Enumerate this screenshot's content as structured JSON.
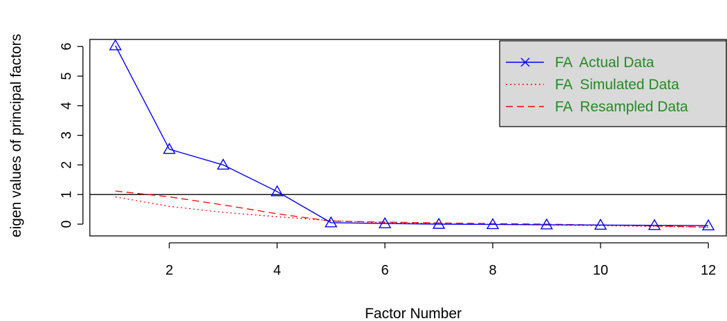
{
  "chart_data": {
    "type": "line",
    "xlabel": "Factor Number",
    "ylabel": "eigen values of principal factors",
    "x": [
      1,
      2,
      3,
      4,
      5,
      6,
      7,
      8,
      9,
      10,
      11,
      12
    ],
    "xlim": [
      0.5,
      12.2
    ],
    "ylim": [
      -0.4,
      6.3
    ],
    "xticks": [
      2,
      4,
      6,
      8,
      10,
      12
    ],
    "yticks": [
      0,
      1,
      2,
      3,
      4,
      5,
      6
    ],
    "reference_line_y": 1,
    "grid": false,
    "legend_position": "top-right",
    "series": [
      {
        "name": "FA  Actual Data",
        "style": "solid",
        "color": "#0000ff",
        "marker": "triangle",
        "values": [
          6.03,
          2.53,
          2.0,
          1.1,
          0.05,
          0.02,
          0.0,
          -0.01,
          -0.02,
          -0.03,
          -0.04,
          -0.05
        ]
      },
      {
        "name": "FA  Simulated Data",
        "style": "dotted",
        "color": "#ff0000",
        "values": [
          0.92,
          0.6,
          0.4,
          0.25,
          0.12,
          0.05,
          0.02,
          -0.01,
          -0.03,
          -0.05,
          -0.08,
          -0.1
        ]
      },
      {
        "name": "FA  Resampled Data",
        "style": "dashed",
        "color": "#ff0000",
        "values": [
          1.12,
          0.92,
          0.65,
          0.35,
          0.1,
          0.07,
          0.04,
          0.02,
          0.0,
          -0.03,
          -0.06,
          -0.1
        ]
      }
    ],
    "legend_text_color": "#228b22",
    "legend_background": "#d9d9d9"
  }
}
